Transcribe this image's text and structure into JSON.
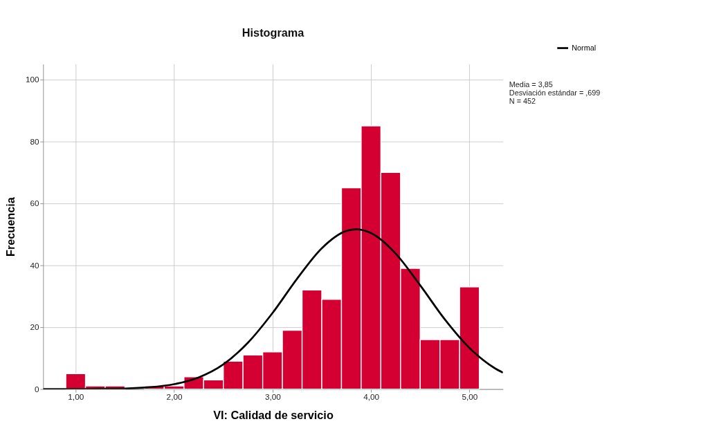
{
  "chart_data": {
    "type": "histogram",
    "title": "Histograma",
    "xlabel": "VI: Calidad de servicio",
    "ylabel": "Frecuencia",
    "series": [
      {
        "color": "#d50032",
        "bins": [
          0.9,
          1.1,
          1.3,
          1.5,
          1.7,
          1.9,
          2.1,
          2.3,
          2.5,
          2.7,
          2.9,
          3.1,
          3.3,
          3.5,
          3.7,
          3.9,
          4.1,
          4.3,
          4.5,
          4.7,
          4.9,
          5.1
        ],
        "values": [
          5,
          1,
          1,
          0,
          1,
          1,
          4,
          3,
          9,
          11,
          12,
          19,
          32,
          29,
          65,
          85,
          70,
          39,
          16,
          16,
          33
        ]
      },
      {
        "type": "line",
        "name": "Normal",
        "color": "#000000",
        "x": [
          0.67,
          1.0,
          1.25,
          1.5,
          1.75,
          2.0,
          2.25,
          2.5,
          2.75,
          3.0,
          3.25,
          3.5,
          3.75,
          3.85,
          4.0,
          4.25,
          4.5,
          4.75,
          5.0,
          5.25,
          5.34
        ],
        "values": [
          0,
          0,
          0.1,
          0.2,
          0.6,
          1.6,
          3.8,
          8,
          15,
          24.6,
          35.7,
          45.5,
          51.1,
          51.6,
          50.4,
          43.8,
          33.5,
          22.5,
          13.3,
          6.9,
          5.3
        ]
      }
    ],
    "xlim": [
      0.67,
      5.34
    ],
    "xticks": [
      {
        "value": 1,
        "label": "1,00"
      },
      {
        "value": 2,
        "label": "2,00"
      },
      {
        "value": 3,
        "label": "3,00"
      },
      {
        "value": 4,
        "label": "4,00"
      },
      {
        "value": 5,
        "label": "5,00"
      }
    ],
    "ylim": [
      0,
      105
    ],
    "yticks": [
      0,
      20,
      40,
      60,
      80,
      100
    ],
    "grid": true,
    "legend": "top right",
    "annotations": [
      "Media = 3,85",
      "Desviación estándar = ,699",
      "N = 452"
    ]
  }
}
